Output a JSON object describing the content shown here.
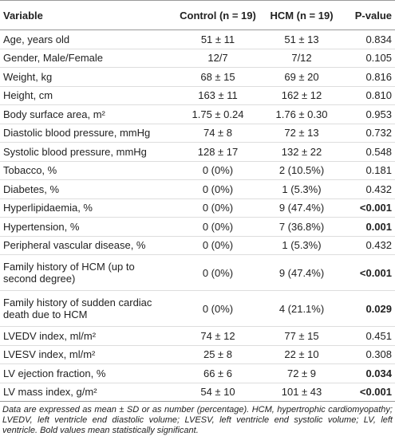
{
  "table": {
    "header": [
      "Variable",
      "Control (n = 19)",
      "HCM (n = 19)",
      "P-value"
    ],
    "rows": [
      {
        "cells": [
          "Age, years old",
          "51 ± 11",
          "51 ± 13",
          "0.834"
        ],
        "bold_p": false
      },
      {
        "cells": [
          "Gender, Male/Female",
          "12/7",
          "7/12",
          "0.105"
        ],
        "bold_p": false
      },
      {
        "cells": [
          "Weight, kg",
          "68 ± 15",
          "69 ± 20",
          "0.816"
        ],
        "bold_p": false
      },
      {
        "cells": [
          "Height, cm",
          "163 ± 11",
          "162 ± 12",
          "0.810"
        ],
        "bold_p": false
      },
      {
        "cells": [
          "Body surface area, m²",
          "1.75 ± 0.24",
          "1.76 ± 0.30",
          "0.953"
        ],
        "bold_p": false
      },
      {
        "cells": [
          "Diastolic blood pressure, mmHg",
          "74 ± 8",
          "72 ± 13",
          "0.732"
        ],
        "bold_p": false
      },
      {
        "cells": [
          "Systolic blood pressure, mmHg",
          "128 ± 17",
          "132 ± 22",
          "0.548"
        ],
        "bold_p": false
      },
      {
        "cells": [
          "Tobacco, %",
          "0 (0%)",
          "2 (10.5%)",
          "0.181"
        ],
        "bold_p": false
      },
      {
        "cells": [
          "Diabetes, %",
          "0 (0%)",
          "1 (5.3%)",
          "0.432"
        ],
        "bold_p": false
      },
      {
        "cells": [
          "Hyperlipidaemia, %",
          "0 (0%)",
          "9 (47.4%)",
          "<0.001"
        ],
        "bold_p": true
      },
      {
        "cells": [
          "Hypertension, %",
          "0 (0%)",
          "7 (36.8%)",
          "0.001"
        ],
        "bold_p": true
      },
      {
        "cells": [
          "Peripheral vascular disease, %",
          "0 (0%)",
          "1 (5.3%)",
          "0.432"
        ],
        "bold_p": false
      },
      {
        "cells": [
          "Family history of HCM (up to second degree)",
          "0 (0%)",
          "9 (47.4%)",
          "<0.001"
        ],
        "bold_p": true
      },
      {
        "cells": [
          "Family history of sudden cardiac death due to HCM",
          "0 (0%)",
          "4 (21.1%)",
          "0.029"
        ],
        "bold_p": true
      },
      {
        "cells": [
          "LVEDV index, ml/m²",
          "74 ± 12",
          "77 ± 15",
          "0.451"
        ],
        "bold_p": false
      },
      {
        "cells": [
          "LVESV index, ml/m²",
          "25 ± 8",
          "22 ± 10",
          "0.308"
        ],
        "bold_p": false
      },
      {
        "cells": [
          "LV ejection fraction, %",
          "66 ± 6",
          "72 ± 9",
          "0.034"
        ],
        "bold_p": true
      },
      {
        "cells": [
          "LV mass index, g/m²",
          "54 ± 10",
          "101 ± 43",
          "<0.001"
        ],
        "bold_p": true
      }
    ],
    "note": "Data are expressed as mean ± SD or as number (percentage). HCM, hypertrophic cardiomyopathy; LVEDV, left ventricle end diastolic volume; LVESV, left ventricle end systolic volume; LV, left ventricle. Bold values mean statistically significant."
  }
}
